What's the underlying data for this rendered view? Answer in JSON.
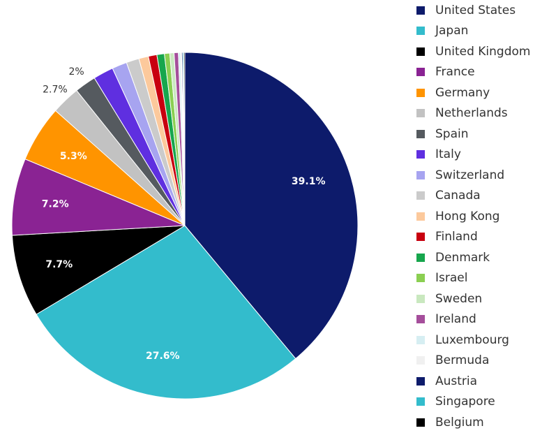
{
  "chart_data": {
    "type": "pie",
    "slices": [
      {
        "label": "United States",
        "value": 39.1,
        "color": "#0d1b6b",
        "data_label": "39.1%"
      },
      {
        "label": "Japan",
        "value": 27.6,
        "color": "#33bccc",
        "data_label": "27.6%"
      },
      {
        "label": "United Kingdom",
        "value": 7.7,
        "color": "#000000",
        "data_label": "7.7%"
      },
      {
        "label": "France",
        "value": 7.2,
        "color": "#8a2393",
        "data_label": "7.2%"
      },
      {
        "label": "Germany",
        "value": 5.3,
        "color": "#ff9400",
        "data_label": "5.3%"
      },
      {
        "label": "Netherlands",
        "value": 2.7,
        "color": "#c2c2c2",
        "data_label": "2.7%"
      },
      {
        "label": "Spain",
        "value": 2.0,
        "color": "#555a5f",
        "data_label": "2%"
      },
      {
        "label": "Italy",
        "value": 1.9,
        "color": "#5f2fe0",
        "data_label": ""
      },
      {
        "label": "Switzerland",
        "value": 1.4,
        "color": "#a7a4f0",
        "data_label": ""
      },
      {
        "label": "Canada",
        "value": 1.2,
        "color": "#cbcbcb",
        "data_label": ""
      },
      {
        "label": "Hong Kong",
        "value": 0.9,
        "color": "#fcc99c",
        "data_label": ""
      },
      {
        "label": "Finland",
        "value": 0.8,
        "color": "#c8000f",
        "data_label": ""
      },
      {
        "label": "Denmark",
        "value": 0.7,
        "color": "#17a64d",
        "data_label": ""
      },
      {
        "label": "Israel",
        "value": 0.5,
        "color": "#8bcf52",
        "data_label": ""
      },
      {
        "label": "Sweden",
        "value": 0.4,
        "color": "#c9e8bf",
        "data_label": ""
      },
      {
        "label": "Ireland",
        "value": 0.4,
        "color": "#a54e9b",
        "data_label": ""
      },
      {
        "label": "Luxembourg",
        "value": 0.2,
        "color": "#d6eef2",
        "data_label": ""
      },
      {
        "label": "Bermuda",
        "value": 0.1,
        "color": "#f0f0f0",
        "data_label": ""
      },
      {
        "label": "Austria",
        "value": 0.1,
        "color": "#0d1b6b",
        "data_label": ""
      },
      {
        "label": "Singapore",
        "value": 0.1,
        "color": "#33bccc",
        "data_label": ""
      },
      {
        "label": "Belgium",
        "value": 0.1,
        "color": "#000000",
        "data_label": ""
      }
    ],
    "legend_position": "right"
  }
}
